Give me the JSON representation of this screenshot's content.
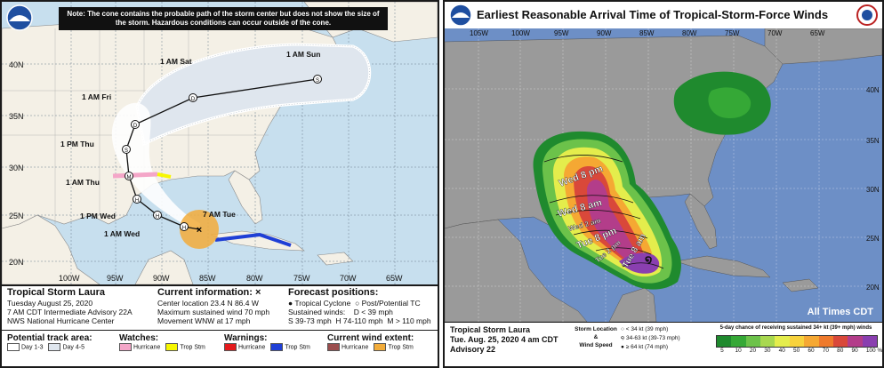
{
  "left": {
    "note": "Note: The cone contains the probable path of the storm center but does not show the size of the storm. Hazardous conditions can occur outside of the cone.",
    "labels": {
      "sun": "1 AM Sun",
      "sat": "1 AM Sat",
      "fri": "1 AM Fri",
      "thu_pm": "1 PM Thu",
      "thu_am": "1 AM Thu",
      "wed_pm": "1 PM Wed",
      "wed_am": "1 AM Wed",
      "tue": "7 AM Tue"
    },
    "points": {
      "s": "S",
      "d": "D",
      "h": "H",
      "m": "M"
    },
    "lat_labels": [
      "40N",
      "35N",
      "30N",
      "25N",
      "20N"
    ],
    "lon_labels": [
      "100W",
      "95W",
      "90W",
      "85W",
      "80W",
      "75W",
      "70W",
      "65W"
    ],
    "storm_name": "Tropical Storm Laura",
    "date": "Tuesday August 25, 2020",
    "advisory": "7 AM CDT Intermediate Advisory 22A",
    "center": "NWS National Hurricane Center",
    "current_info_title": "Current information: ×",
    "current_info": [
      "Center location 23.4 N 86.4 W",
      "Maximum sustained wind 70 mph",
      "Movement WNW at 17 mph"
    ],
    "forecast_title": "Forecast positions:",
    "forecast_tc": "Tropical Cyclone",
    "forecast_post": "Post/Potential TC",
    "sustained": "Sustained winds:",
    "d_def": "D < 39 mph",
    "s_def": "S 39-73 mph",
    "h_def": "H 74-110 mph",
    "m_def": "M > 110 mph",
    "track_area_title": "Potential track area:",
    "day13": "Day 1-3",
    "day45": "Day 4-5",
    "watches_title": "Watches:",
    "watch_hurricane": "Hurricane",
    "watch_trop": "Trop Stm",
    "warnings_title": "Warnings:",
    "warn_hurricane": "Hurricane",
    "warn_trop": "Trop Stm",
    "wind_title": "Current wind extent:",
    "wind_hurricane": "Hurricane",
    "wind_trop": "Trop Stm",
    "colors": {
      "hurricane_watch": "#f4a6c8",
      "trop_watch": "#f7f700",
      "hurricane_warn": "#e41a1c",
      "trop_warn": "#1f3fd6",
      "hurricane_extent": "#9b4d4d",
      "trop_extent": "#f2ac3a"
    }
  },
  "right": {
    "title": "Earliest Reasonable Arrival Time of Tropical-Storm-Force Winds",
    "lon_labels": [
      "105W",
      "100W",
      "95W",
      "90W",
      "85W",
      "80W",
      "75W",
      "70W",
      "65W"
    ],
    "lat_labels": [
      "40N",
      "35N",
      "30N",
      "25N",
      "20N"
    ],
    "time_labels": [
      "Wed 8 pm",
      "Wed 8 am",
      "Wed 2 am",
      "Tue 8 pm",
      "Tue 2 pm",
      "Tue 8 am"
    ],
    "all_times": "All Times CDT",
    "storm_name": "Tropical Storm Laura",
    "date": "Tue. Aug. 25, 2020  4 am CDT",
    "advisory": "Advisory 22",
    "loc_title_1": "Storm Location",
    "loc_title_2": "&",
    "loc_title_3": "Wind Speed",
    "wind_lt34": "< 34 kt (39 mph)",
    "wind_34_63": "34-63 kt (39-73 mph)",
    "wind_64": "≥ 64 kt (74 mph)",
    "chance_title": "5-day chance of receiving sustained 34+ kt (39+ mph) winds",
    "scale_labels": [
      "5",
      "10",
      "20",
      "30",
      "40",
      "50",
      "60",
      "70",
      "80",
      "90",
      "100 %"
    ],
    "scale_colors": [
      "#1f8a2e",
      "#35a836",
      "#6cc24a",
      "#a8d84f",
      "#e4ed4c",
      "#f7d23c",
      "#f5a833",
      "#ef7a2c",
      "#d9483a",
      "#b33d8a",
      "#8a3fb0"
    ]
  }
}
